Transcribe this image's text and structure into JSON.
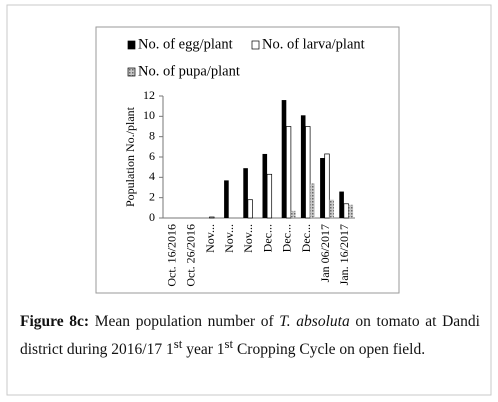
{
  "chart_data": {
    "type": "bar",
    "ylabel": "Population No./plant",
    "categories": [
      "Oct. 16/2016",
      "Oct. 26/2016",
      "Nov...",
      "Nov...",
      "Nov...",
      "Dec...",
      "Dec...",
      "Dec...",
      "Jan 06/2017",
      "Jan. 16/2017"
    ],
    "series": [
      {
        "name": "No. of egg/plant",
        "color": "#000000",
        "values": [
          0,
          0,
          0,
          3.7,
          4.9,
          6.3,
          11.6,
          10.1,
          5.9,
          2.6
        ]
      },
      {
        "name": "No. of larva/plant",
        "color": "#ffffff",
        "values": [
          0,
          0,
          0.1,
          0,
          1.8,
          4.3,
          9,
          9,
          6.3,
          1.4
        ]
      },
      {
        "name": "No. of pupa/plant",
        "color": "#9a9a9a",
        "values": [
          0,
          0,
          0,
          0,
          0,
          0,
          0.7,
          3.4,
          1.8,
          1.3
        ]
      }
    ],
    "ylim": [
      0,
      12
    ],
    "yticks": [
      0,
      2,
      4,
      6,
      8,
      10,
      12
    ],
    "grid": false
  },
  "caption": {
    "label": "Figure 8c:",
    "parts": [
      " Mean population number of ",
      "T. absoluta",
      " on tomato at Dandi district during 2016/17 1",
      "st",
      " year 1",
      "st",
      " Cropping Cycle on open field."
    ]
  }
}
